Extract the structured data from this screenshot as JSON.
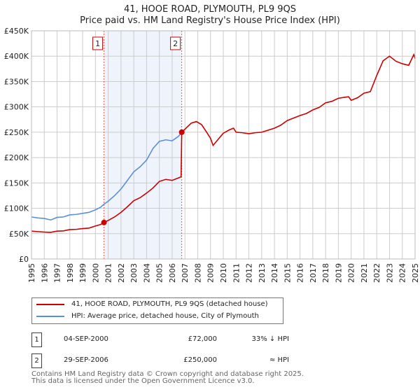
{
  "title_line1": "41, HOOE ROAD, PLYMOUTH, PL9 9QS",
  "title_line2": "Price paid vs. HM Land Registry's House Price Index (HPI)",
  "chart_data": {
    "type": "line",
    "title": "41, HOOE ROAD, PLYMOUTH, PL9 9QS — Price paid vs. HM Land Registry's House Price Index (HPI)",
    "xlim": [
      1995,
      2025
    ],
    "ylim": [
      0,
      450000
    ],
    "grid": true,
    "y_ticks": [
      0,
      50000,
      100000,
      150000,
      200000,
      250000,
      300000,
      350000,
      400000,
      450000
    ],
    "y_tick_labels": [
      "£0",
      "£50K",
      "£100K",
      "£150K",
      "£200K",
      "£250K",
      "£300K",
      "£350K",
      "£400K",
      "£450K"
    ],
    "x_tick_labels": [
      "1995",
      "1996",
      "1997",
      "1998",
      "1999",
      "2000",
      "2001",
      "2002",
      "2003",
      "2004",
      "2005",
      "2006",
      "2007",
      "2008",
      "2009",
      "2010",
      "2011",
      "2012",
      "2013",
      "2014",
      "2015",
      "2016",
      "2017",
      "2018",
      "2019",
      "2020",
      "2021",
      "2022",
      "2023",
      "2024",
      "2025"
    ],
    "shaded_range": [
      2000.67,
      2006.75
    ],
    "series": [
      {
        "name": "41, HOOE ROAD, PLYMOUTH, PL9 9QS (detached house)",
        "color": "#cc0000",
        "x": [
          1995,
          1995.5,
          1996,
          1996.5,
          1997,
          1997.5,
          1998,
          1998.5,
          1999,
          1999.5,
          2000,
          2000.4,
          2000.67,
          2001,
          2001.5,
          2002,
          2002.5,
          2003,
          2003.5,
          2004,
          2004.5,
          2005,
          2005.5,
          2006,
          2006.5,
          2006.7,
          2006.75,
          2007,
          2007.5,
          2007.9,
          2008.3,
          2008.7,
          2009,
          2009.2,
          2009.6,
          2010,
          2010.5,
          2010.8,
          2011,
          2011.5,
          2012,
          2012.5,
          2013,
          2013.5,
          2014,
          2014.5,
          2015,
          2015.5,
          2016,
          2016.5,
          2017,
          2017.5,
          2018,
          2018.5,
          2019,
          2019.5,
          2019.8,
          2020,
          2020.5,
          2021,
          2021.5,
          2022,
          2022.5,
          2023,
          2023.5,
          2024,
          2024.5,
          2024.9,
          2025
        ],
        "y": [
          55000,
          54000,
          53000,
          52500,
          55000,
          55500,
          58000,
          58500,
          60000,
          61000,
          65000,
          68000,
          72000,
          76000,
          83000,
          92000,
          103000,
          115000,
          121000,
          130000,
          140000,
          153000,
          157000,
          155000,
          160000,
          162000,
          250000,
          256000,
          268000,
          271000,
          265000,
          250000,
          238000,
          224000,
          236000,
          248000,
          255000,
          258000,
          250000,
          249000,
          247000,
          249000,
          250000,
          254000,
          258000,
          264000,
          273000,
          278000,
          283000,
          287000,
          294000,
          299000,
          308000,
          311000,
          317000,
          319000,
          320000,
          313000,
          318000,
          327000,
          330000,
          362000,
          391000,
          400000,
          390000,
          385000,
          382000,
          403000,
          395000
        ]
      },
      {
        "name": "HPI: Average price, detached house, City of Plymouth",
        "color": "#5b8fd4",
        "x": [
          1995,
          1995.5,
          1996,
          1996.5,
          1997,
          1997.5,
          1998,
          1998.5,
          1999,
          1999.5,
          2000,
          2000.4,
          2000.67,
          2001,
          2001.5,
          2002,
          2002.5,
          2003,
          2003.5,
          2004,
          2004.5,
          2005,
          2005.5,
          2006,
          2006.5,
          2006.75
        ],
        "y": [
          82800,
          81000,
          80000,
          77000,
          82000,
          83000,
          87000,
          88000,
          90000,
          92000,
          97000,
          102000,
          108000,
          114000,
          125000,
          138000,
          155000,
          172000,
          182000,
          195000,
          218000,
          232000,
          235000,
          233000,
          242000,
          250000
        ]
      }
    ],
    "sales": [
      {
        "label": "1",
        "x": 2000.67,
        "y": 72000
      },
      {
        "label": "2",
        "x": 2006.75,
        "y": 250000
      }
    ]
  },
  "legend": [
    {
      "label": "41, HOOE ROAD, PLYMOUTH, PL9 9QS (detached house)",
      "color": "#cc0000"
    },
    {
      "label": "HPI: Average price, detached house, City of Plymouth",
      "color": "#5b8fd4"
    }
  ],
  "transactions": [
    {
      "num": "1",
      "date": "04-SEP-2000",
      "price": "£72,000",
      "hpi": "33% ↓ HPI"
    },
    {
      "num": "2",
      "date": "29-SEP-2006",
      "price": "£250,000",
      "hpi": "≈ HPI"
    }
  ],
  "footer_line1": "Contains HM Land Registry data © Crown copyright and database right 2025.",
  "footer_line2": "This data is licensed under the Open Government Licence v3.0."
}
